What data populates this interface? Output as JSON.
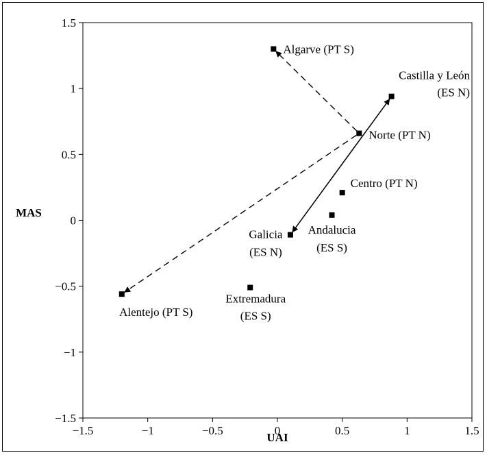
{
  "chart_data": {
    "type": "scatter",
    "title": "",
    "xlabel": "UAI",
    "ylabel": "MAS",
    "xlim": [
      -1.5,
      1.5
    ],
    "ylim": [
      -1.5,
      1.5
    ],
    "xticks": [
      -1.5,
      -1,
      -0.5,
      0,
      0.5,
      1,
      1.5
    ],
    "yticks": [
      -1.5,
      -1,
      -0.5,
      0,
      0.5,
      1,
      1.5
    ],
    "xtick_labels": [
      "−1.5",
      "−1",
      "−0.5",
      "0",
      "0.5",
      "1",
      "1.5"
    ],
    "ytick_labels": [
      "−1.5",
      "−1",
      "−0.5",
      "0",
      "0.5",
      "1",
      "1.5"
    ],
    "grid": false,
    "points": [
      {
        "id": "algarve",
        "lines": [
          "Algarve (PT S)"
        ],
        "x": -0.03,
        "y": 1.3
      },
      {
        "id": "castilla",
        "lines": [
          "Castilla y León",
          "(ES N)"
        ],
        "x": 0.88,
        "y": 0.94
      },
      {
        "id": "norte",
        "lines": [
          "Norte (PT N)"
        ],
        "x": 0.63,
        "y": 0.66
      },
      {
        "id": "centro",
        "lines": [
          "Centro (PT N)"
        ],
        "x": 0.5,
        "y": 0.21
      },
      {
        "id": "andalucia",
        "lines": [
          "Andalucia",
          "(ES S)"
        ],
        "x": 0.42,
        "y": 0.04
      },
      {
        "id": "galicia",
        "lines": [
          "Galicia",
          "(ES N)"
        ],
        "x": 0.1,
        "y": -0.11
      },
      {
        "id": "extremadura",
        "lines": [
          "Extremadura",
          "(ES S)"
        ],
        "x": -0.21,
        "y": -0.51
      },
      {
        "id": "alentejo",
        "lines": [
          "Alentejo (PT S)"
        ],
        "x": -1.2,
        "y": -0.56
      }
    ],
    "arrows": [
      {
        "from": "norte",
        "to": "algarve",
        "style": "dashed"
      },
      {
        "from": "norte",
        "to": "alentejo",
        "style": "dashed"
      },
      {
        "from": "galicia",
        "to": "castilla",
        "style": "solid"
      },
      {
        "from": "castilla",
        "to": "galicia",
        "style": "solid"
      }
    ]
  }
}
